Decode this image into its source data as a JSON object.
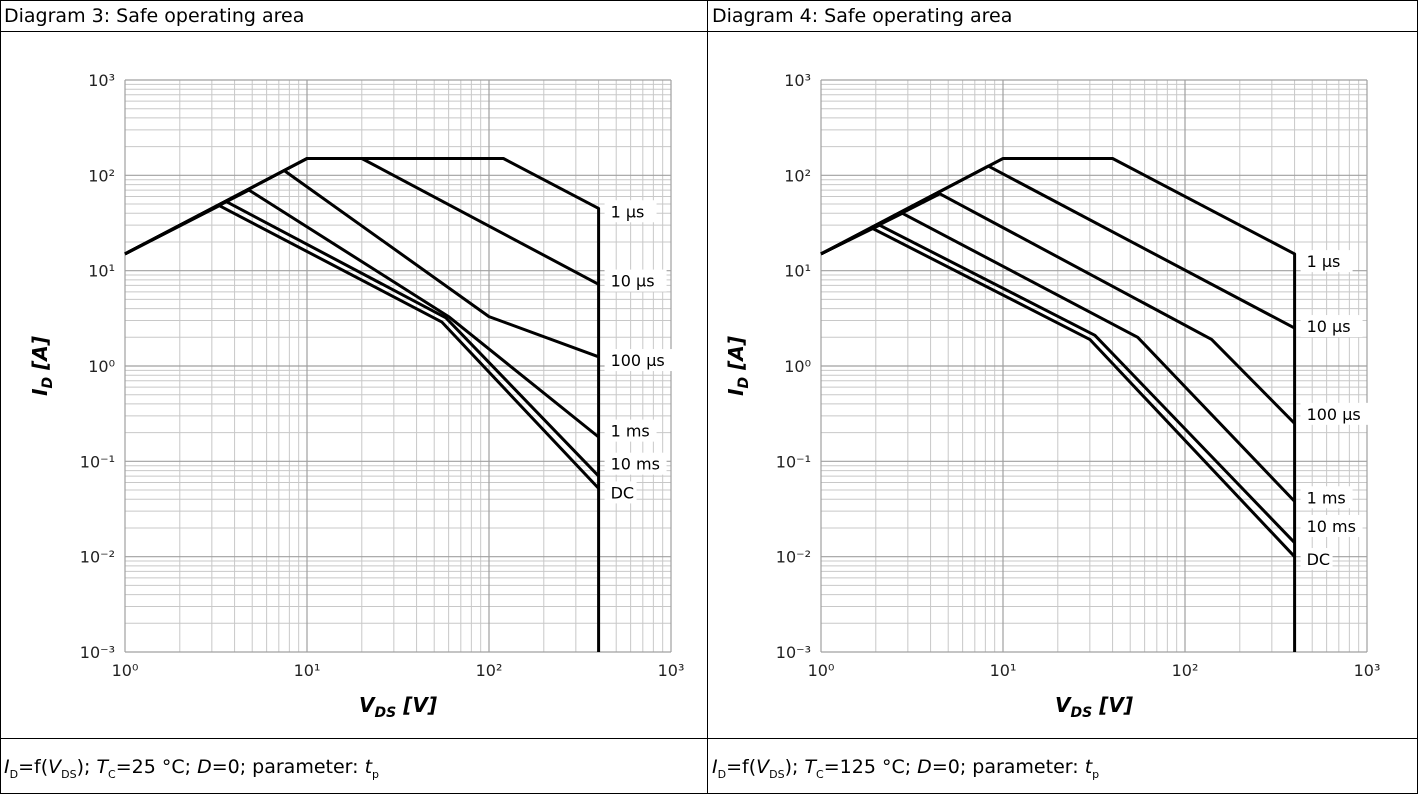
{
  "chart_data": [
    {
      "type": "line",
      "title": "Diagram 3: Safe operating area",
      "xlabel": "V<sub>DS</sub> [V]",
      "ylabel": "I<sub>D</sub> [A]",
      "xscale": "log",
      "yscale": "log",
      "xlim": [
        1,
        1000
      ],
      "ylim": [
        0.001,
        1000
      ],
      "grid": true,
      "x_tick_labels": [
        "10⁰",
        "10¹",
        "10²",
        "10³"
      ],
      "y_tick_labels": [
        "10³",
        "10²",
        "10¹",
        "10⁰",
        "10⁻¹",
        "10⁻²",
        "10⁻³"
      ],
      "footer": {
        "a": "I",
        "a_sub": "D",
        "b": "=f(",
        "c": "V",
        "c_sub": "DS",
        "d": "); ",
        "e": "T",
        "e_sub": "C",
        "f": "=25 °C; ",
        "g": "D",
        "h": "=0; parameter: ",
        "i": "t",
        "i_sub": "p"
      },
      "series": [
        {
          "name": "1 µs",
          "label_y": 40,
          "points": [
            [
              1,
              15
            ],
            [
              10,
              150
            ],
            [
              120,
              150
            ],
            [
              400,
              45
            ],
            [
              400,
              0.001
            ]
          ]
        },
        {
          "name": "10 µs",
          "label_y": 7.5,
          "points": [
            [
              1,
              15
            ],
            [
              10,
              150
            ],
            [
              20,
              150
            ],
            [
              400,
              7.2
            ]
          ]
        },
        {
          "name": "100 µs",
          "label_y": 1.1,
          "points": [
            [
              1,
              15
            ],
            [
              7.5,
              112
            ],
            [
              100,
              3.3
            ],
            [
              400,
              1.25
            ]
          ]
        },
        {
          "name": "1 ms",
          "label_y": 0.2,
          "points": [
            [
              1,
              15
            ],
            [
              4.8,
              70
            ],
            [
              60,
              3.3
            ],
            [
              400,
              0.18
            ]
          ]
        },
        {
          "name": "10 ms",
          "label_y": 0.09,
          "points": [
            [
              1,
              15
            ],
            [
              3.6,
              53
            ],
            [
              58,
              3.2
            ],
            [
              400,
              0.07
            ]
          ]
        },
        {
          "name": "DC",
          "label_y": 0.045,
          "points": [
            [
              1,
              15
            ],
            [
              3.3,
              48
            ],
            [
              55,
              2.9
            ],
            [
              400,
              0.052
            ]
          ]
        }
      ]
    },
    {
      "type": "line",
      "title": "Diagram 4: Safe operating area",
      "xlabel": "V<sub>DS</sub> [V]",
      "ylabel": "I<sub>D</sub> [A]",
      "xscale": "log",
      "yscale": "log",
      "xlim": [
        1,
        1000
      ],
      "ylim": [
        0.001,
        1000
      ],
      "grid": true,
      "x_tick_labels": [
        "10⁰",
        "10¹",
        "10²",
        "10³"
      ],
      "y_tick_labels": [
        "10³",
        "10²",
        "10¹",
        "10⁰",
        "10⁻¹",
        "10⁻²",
        "10⁻³"
      ],
      "footer": {
        "a": "I",
        "a_sub": "D",
        "b": "=f(",
        "c": "V",
        "c_sub": "DS",
        "d": "); ",
        "e": "T",
        "e_sub": "C",
        "f": "=125 °C; ",
        "g": "D",
        "h": "=0; parameter: ",
        "i": "t",
        "i_sub": "p"
      },
      "series": [
        {
          "name": "1 µs",
          "label_y": 12,
          "points": [
            [
              1,
              15
            ],
            [
              10,
              150
            ],
            [
              40,
              150
            ],
            [
              400,
              15
            ],
            [
              400,
              0.001
            ]
          ]
        },
        {
          "name": "10 µs",
          "label_y": 2.5,
          "points": [
            [
              1,
              15
            ],
            [
              8.3,
              125
            ],
            [
              400,
              2.5
            ]
          ]
        },
        {
          "name": "100 µs",
          "label_y": 0.3,
          "points": [
            [
              1,
              15
            ],
            [
              4.5,
              64
            ],
            [
              140,
              1.9
            ],
            [
              400,
              0.25
            ]
          ]
        },
        {
          "name": "1 ms",
          "label_y": 0.04,
          "points": [
            [
              1,
              15
            ],
            [
              2.8,
              40
            ],
            [
              55,
              2
            ],
            [
              400,
              0.038
            ]
          ]
        },
        {
          "name": "10 ms",
          "label_y": 0.02,
          "points": [
            [
              1,
              15
            ],
            [
              2.1,
              30
            ],
            [
              32,
              2.1
            ],
            [
              400,
              0.014
            ]
          ]
        },
        {
          "name": "DC",
          "label_y": 0.009,
          "points": [
            [
              1,
              15
            ],
            [
              1.9,
              28
            ],
            [
              30,
              1.9
            ],
            [
              400,
              0.01
            ]
          ]
        }
      ]
    }
  ]
}
